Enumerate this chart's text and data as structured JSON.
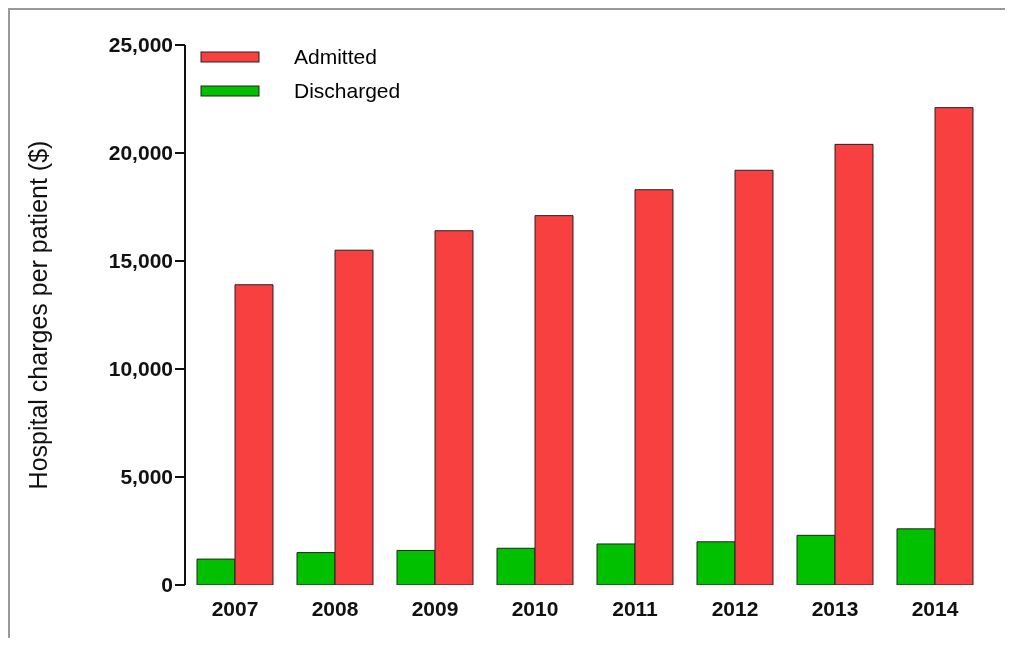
{
  "chart_data": {
    "type": "bar",
    "ylabel": "Hospital charges per patient  ($)",
    "categories": [
      "2007",
      "2008",
      "2009",
      "2010",
      "2011",
      "2012",
      "2013",
      "2014"
    ],
    "series": [
      {
        "name": "Discharged",
        "color": "#00c000",
        "values": [
          1200,
          1500,
          1600,
          1700,
          1900,
          2000,
          2300,
          2600
        ]
      },
      {
        "name": "Admitted",
        "color": "#f84040",
        "values": [
          13900,
          15500,
          16400,
          17100,
          18300,
          19200,
          20400,
          22100
        ]
      }
    ],
    "ylim": [
      0,
      25000
    ],
    "yticks": [
      {
        "value": 0,
        "label": "0"
      },
      {
        "value": 5000,
        "label": "5,000"
      },
      {
        "value": 10000,
        "label": "10,000"
      },
      {
        "value": 15000,
        "label": "15,000"
      },
      {
        "value": 20000,
        "label": "20,000"
      },
      {
        "value": 25000,
        "label": "25,000"
      }
    ],
    "grid": false,
    "legend": "top left"
  }
}
